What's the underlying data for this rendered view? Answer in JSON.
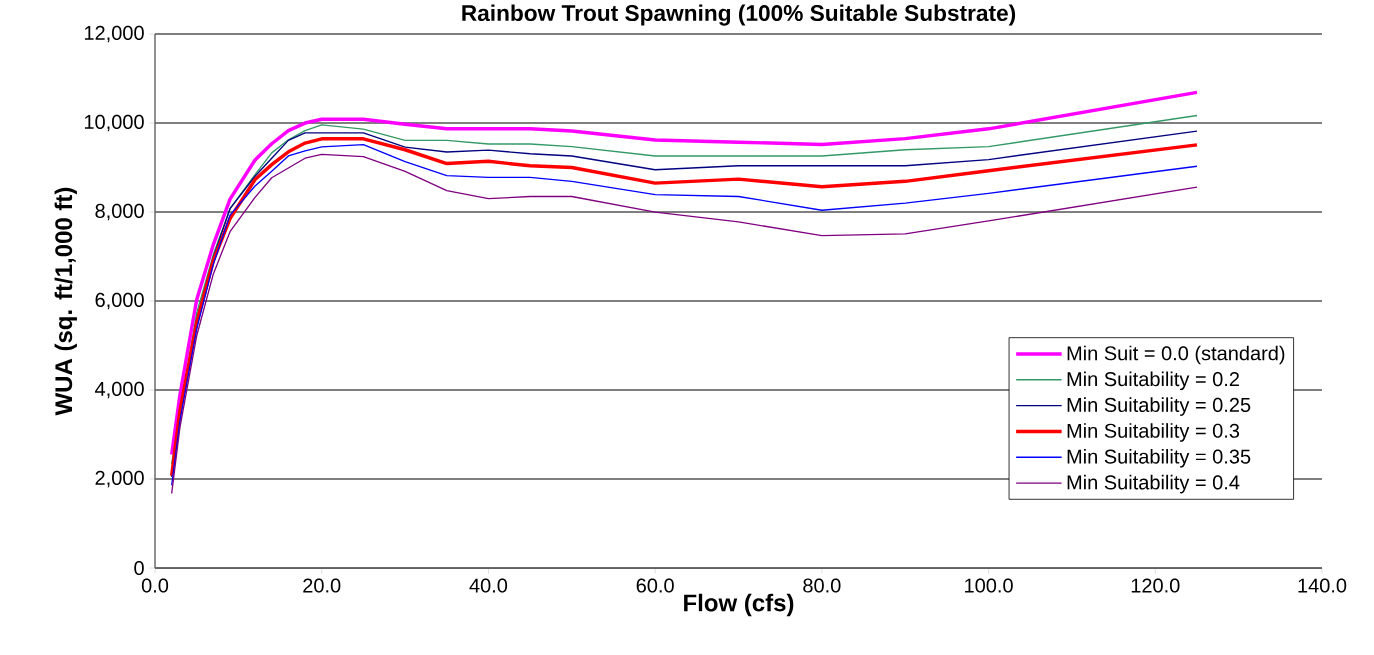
{
  "chart_data": {
    "type": "line",
    "title": "Rainbow Trout Spawning (100% Suitable Substrate)",
    "xlabel": "Flow (cfs)",
    "ylabel": "WUA (sq. ft/1,000 ft)",
    "x": [
      2,
      3,
      5,
      7,
      9,
      12,
      14,
      16,
      18,
      20,
      25,
      30,
      35,
      40,
      45,
      50,
      60,
      70,
      80,
      90,
      100,
      125
    ],
    "xlim": [
      0,
      140
    ],
    "xticks": [
      {
        "value": 0,
        "label": "0.0"
      },
      {
        "value": 20,
        "label": "20.0"
      },
      {
        "value": 40,
        "label": "40.0"
      },
      {
        "value": 60,
        "label": "60.0"
      },
      {
        "value": 80,
        "label": "80.0"
      },
      {
        "value": 100,
        "label": "100.0"
      },
      {
        "value": 120,
        "label": "120.0"
      },
      {
        "value": 140,
        "label": "140.0"
      }
    ],
    "ylim": [
      0,
      12000
    ],
    "yticks": [
      {
        "value": 0,
        "label": "0"
      },
      {
        "value": 2000,
        "label": "2,000"
      },
      {
        "value": 4000,
        "label": "4,000"
      },
      {
        "value": 6000,
        "label": "6,000"
      },
      {
        "value": 8000,
        "label": "8,000"
      },
      {
        "value": 10000,
        "label": "10,000"
      },
      {
        "value": 12000,
        "label": "12,000"
      }
    ],
    "grid": "y",
    "legend": "right",
    "marker": "none",
    "line_style": "solid",
    "series": [
      {
        "name": "Min Suit = 0.0 (standard)",
        "color": "#ff00ff",
        "values": [
          2550,
          3900,
          6030,
          7270,
          8290,
          9170,
          9535,
          9830,
          10000,
          10085,
          10085,
          9975,
          9870,
          9870,
          9870,
          9820,
          9620,
          9570,
          9520,
          9650,
          9870,
          10690
        ]
      },
      {
        "name": "Min Suitability = 0.2",
        "color": "#339966",
        "values": [
          2340,
          null,
          5730,
          7050,
          8075,
          8840,
          9330,
          9625,
          9830,
          9960,
          9865,
          9610,
          9610,
          9530,
          9530,
          9470,
          9260,
          9260,
          9260,
          9400,
          9470,
          10170
        ]
      },
      {
        "name": "Min Suitability = 0.25",
        "color": "#000080",
        "values": [
          2050,
          3465,
          5590,
          6980,
          8075,
          8805,
          9210,
          9610,
          9780,
          9780,
          9780,
          9460,
          9350,
          9390,
          9310,
          9260,
          8950,
          9040,
          9040,
          9040,
          9180,
          9820
        ]
      },
      {
        "name": "Min Suitability = 0.3",
        "color": "#ff0000",
        "values": [
          2075,
          3540,
          5515,
          6910,
          7855,
          8730,
          9065,
          9355,
          9550,
          9645,
          9645,
          9400,
          9090,
          9140,
          9040,
          9000,
          8650,
          8740,
          8570,
          8690,
          8930,
          9510
        ]
      },
      {
        "name": "Min Suitability = 0.35",
        "color": "#0000ff",
        "values": [
          1860,
          3320,
          5375,
          6830,
          7930,
          8585,
          8915,
          9260,
          9375,
          9465,
          9515,
          9135,
          8820,
          8780,
          8780,
          8690,
          8390,
          8350,
          8040,
          8200,
          8420,
          9030
        ]
      },
      {
        "name": "Min Suitability = 0.4",
        "color": "#800080",
        "values": [
          1675,
          3175,
          5220,
          6610,
          7560,
          8330,
          8770,
          8990,
          9210,
          9295,
          9245,
          8915,
          8480,
          8300,
          8350,
          8350,
          8000,
          7780,
          7470,
          7510,
          7800,
          8560
        ]
      }
    ]
  }
}
